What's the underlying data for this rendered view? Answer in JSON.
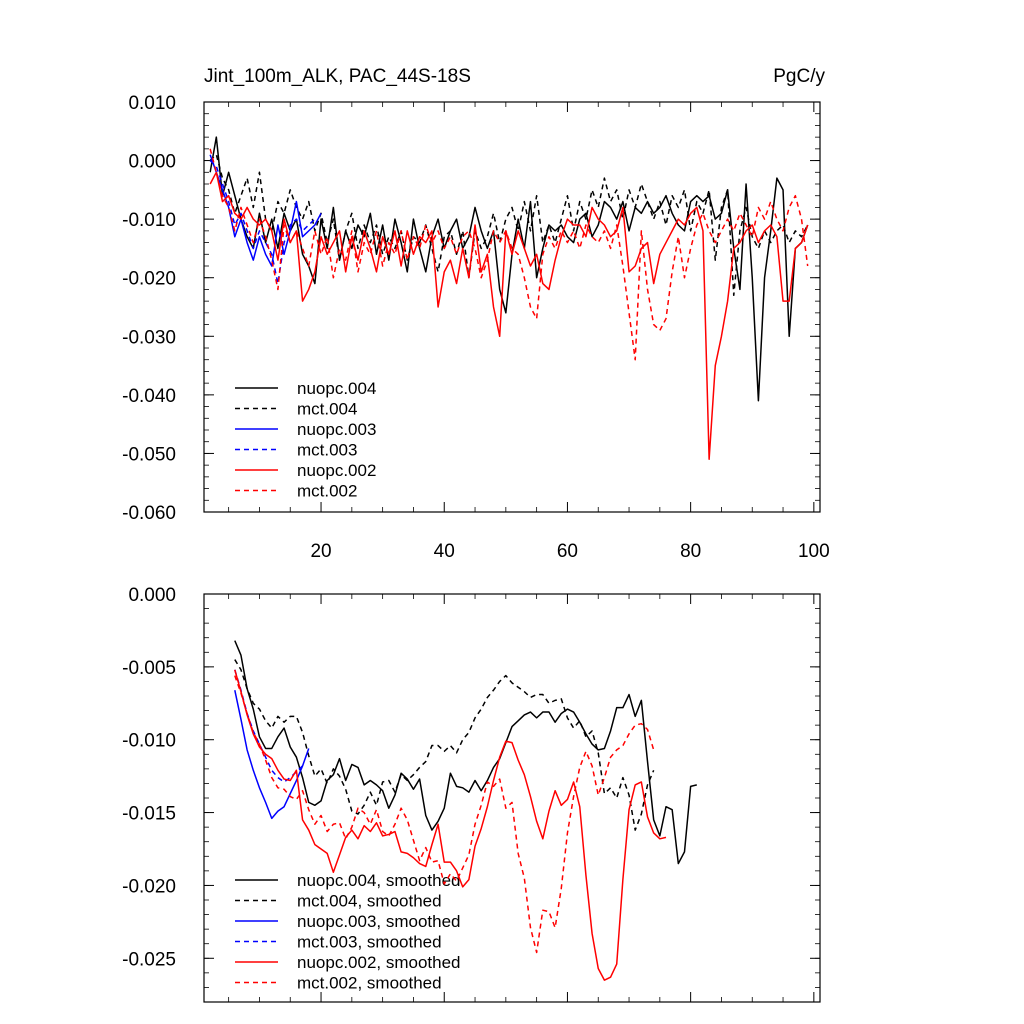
{
  "chart_data": [
    {
      "type": "line",
      "title": "Jint_100m_ALK, PAC_44S-18S",
      "units": "PgC/y",
      "xlabel": "",
      "ylabel": "",
      "xlim": [
        1,
        101
      ],
      "ylim": [
        -0.06,
        0.01
      ],
      "xticks": [
        20,
        40,
        60,
        80,
        100
      ],
      "xtick_labels": [
        "20",
        "40",
        "60",
        "80",
        "100"
      ],
      "yticks": [
        0.01,
        0.0,
        -0.01,
        -0.02,
        -0.03,
        -0.04,
        -0.05,
        -0.06
      ],
      "ytick_labels": [
        "0.010",
        "0.000",
        "-0.010",
        "-0.020",
        "-0.030",
        "-0.040",
        "-0.050",
        "-0.060"
      ],
      "legend_position": "lower-left",
      "series": [
        {
          "name": "nuopc.004",
          "color": "#000000",
          "dash": "solid",
          "x0": 2,
          "values": [
            -0.002,
            0.004,
            -0.006,
            -0.002,
            -0.006,
            -0.01,
            -0.013,
            -0.015,
            -0.009,
            -0.014,
            -0.01,
            -0.015,
            -0.009,
            -0.012,
            -0.01,
            -0.016,
            -0.018,
            -0.021,
            -0.01,
            -0.015,
            -0.008,
            -0.017,
            -0.012,
            -0.015,
            -0.011,
            -0.013,
            -0.009,
            -0.016,
            -0.011,
            -0.017,
            -0.01,
            -0.014,
            -0.019,
            -0.01,
            -0.015,
            -0.019,
            -0.013,
            -0.01,
            -0.015,
            -0.012,
            -0.01,
            -0.015,
            -0.013,
            -0.008,
            -0.012,
            -0.015,
            -0.012,
            -0.022,
            -0.026,
            -0.016,
            -0.01,
            -0.015,
            -0.007,
            -0.02,
            -0.015,
            -0.011,
            -0.012,
            -0.011,
            -0.013,
            -0.014,
            -0.01,
            -0.009,
            -0.013,
            -0.011,
            -0.007,
            -0.008,
            -0.01,
            -0.007,
            -0.012,
            -0.008,
            -0.009,
            -0.007,
            -0.009,
            -0.008,
            -0.006,
            -0.009,
            -0.011,
            -0.012,
            -0.007,
            -0.006,
            -0.007,
            -0.006,
            -0.01,
            -0.009,
            -0.005,
            -0.015,
            -0.022,
            -0.004,
            -0.02,
            -0.041,
            -0.02,
            -0.012,
            -0.003,
            -0.005,
            -0.03,
            -0.015,
            -0.014,
            -0.011
          ]
        },
        {
          "name": "mct.004",
          "color": "#000000",
          "dash": "dashed",
          "x0": 2,
          "values": [
            0.0,
            0.001,
            -0.003,
            -0.005,
            -0.009,
            -0.006,
            -0.003,
            -0.008,
            -0.002,
            -0.01,
            -0.012,
            -0.007,
            -0.009,
            -0.005,
            -0.008,
            -0.01,
            -0.007,
            -0.012,
            -0.009,
            -0.014,
            -0.01,
            -0.017,
            -0.012,
            -0.009,
            -0.015,
            -0.011,
            -0.014,
            -0.011,
            -0.016,
            -0.013,
            -0.015,
            -0.012,
            -0.017,
            -0.013,
            -0.014,
            -0.011,
            -0.015,
            -0.019,
            -0.013,
            -0.012,
            -0.016,
            -0.012,
            -0.02,
            -0.012,
            -0.015,
            -0.013,
            -0.009,
            -0.014,
            -0.01,
            -0.008,
            -0.012,
            -0.007,
            -0.012,
            -0.006,
            -0.014,
            -0.011,
            -0.014,
            -0.01,
            -0.006,
            -0.012,
            -0.007,
            -0.01,
            -0.005,
            -0.008,
            -0.003,
            -0.007,
            -0.005,
            -0.01,
            -0.005,
            -0.008,
            -0.004,
            -0.007,
            -0.01,
            -0.007,
            -0.011,
            -0.006,
            -0.008,
            -0.005,
            -0.012,
            -0.007,
            -0.009,
            -0.005,
            -0.017,
            -0.008,
            -0.005,
            -0.023,
            -0.012,
            -0.008,
            -0.013,
            -0.015,
            -0.012,
            -0.014,
            -0.012,
            -0.011,
            -0.014,
            -0.012,
            -0.013,
            -0.011
          ]
        },
        {
          "name": "nuopc.003",
          "color": "#0000ff",
          "dash": "solid",
          "x0": 2,
          "values": [
            0.001,
            -0.002,
            -0.005,
            -0.008,
            -0.013,
            -0.01,
            -0.014,
            -0.017,
            -0.013,
            -0.016,
            -0.018,
            -0.011,
            -0.016,
            -0.012,
            -0.007,
            -0.013,
            -0.012,
            -0.011,
            -0.009
          ]
        },
        {
          "name": "mct.003",
          "color": "#0000ff",
          "dash": "dashed",
          "x0": 2,
          "values": [
            0.0,
            -0.001,
            -0.004,
            -0.007,
            -0.011,
            -0.009,
            -0.012,
            -0.015,
            -0.012,
            -0.014,
            -0.016,
            -0.021,
            -0.014,
            -0.011,
            -0.01,
            -0.012,
            -0.011,
            -0.01
          ]
        },
        {
          "name": "nuopc.002",
          "color": "#ff0000",
          "dash": "solid",
          "x0": 2,
          "values": [
            -0.004,
            -0.002,
            -0.007,
            -0.006,
            -0.009,
            -0.01,
            -0.008,
            -0.01,
            -0.011,
            -0.01,
            -0.012,
            -0.017,
            -0.01,
            -0.014,
            -0.012,
            -0.024,
            -0.022,
            -0.019,
            -0.013,
            -0.016,
            -0.014,
            -0.012,
            -0.019,
            -0.013,
            -0.017,
            -0.012,
            -0.015,
            -0.019,
            -0.013,
            -0.016,
            -0.012,
            -0.018,
            -0.012,
            -0.016,
            -0.013,
            -0.014,
            -0.012,
            -0.025,
            -0.019,
            -0.017,
            -0.021,
            -0.015,
            -0.02,
            -0.011,
            -0.019,
            -0.016,
            -0.025,
            -0.03,
            -0.012,
            -0.016,
            -0.012,
            -0.015,
            -0.018,
            -0.016,
            -0.021,
            -0.022,
            -0.017,
            -0.013,
            -0.01,
            -0.011,
            -0.011,
            -0.013,
            -0.008,
            -0.01,
            -0.011,
            -0.013,
            -0.012,
            -0.008,
            -0.019,
            -0.018,
            -0.015,
            -0.014,
            -0.021,
            -0.016,
            -0.014,
            -0.012,
            -0.01,
            -0.011,
            -0.009,
            -0.008,
            -0.012,
            -0.051,
            -0.035,
            -0.03,
            -0.024,
            -0.015,
            -0.014,
            -0.012,
            -0.011,
            -0.014,
            -0.012,
            -0.011,
            -0.013,
            -0.024,
            -0.024,
            -0.015,
            -0.014,
            -0.011
          ]
        },
        {
          "name": "mct.002",
          "color": "#ff0000",
          "dash": "dashed",
          "x0": 2,
          "values": [
            0.002,
            -0.002,
            -0.006,
            -0.008,
            -0.012,
            -0.008,
            -0.011,
            -0.014,
            -0.01,
            -0.013,
            -0.017,
            -0.022,
            -0.011,
            -0.014,
            -0.012,
            -0.015,
            -0.018,
            -0.012,
            -0.016,
            -0.013,
            -0.02,
            -0.015,
            -0.017,
            -0.012,
            -0.019,
            -0.014,
            -0.016,
            -0.012,
            -0.018,
            -0.014,
            -0.016,
            -0.012,
            -0.017,
            -0.013,
            -0.015,
            -0.011,
            -0.014,
            -0.012,
            -0.015,
            -0.013,
            -0.016,
            -0.013,
            -0.012,
            -0.015,
            -0.02,
            -0.017,
            -0.012,
            -0.014,
            -0.012,
            -0.015,
            -0.016,
            -0.02,
            -0.025,
            -0.027,
            -0.016,
            -0.013,
            -0.015,
            -0.012,
            -0.014,
            -0.012,
            -0.015,
            -0.011,
            -0.013,
            -0.014,
            -0.012,
            -0.015,
            -0.011,
            -0.018,
            -0.026,
            -0.034,
            -0.012,
            -0.022,
            -0.028,
            -0.029,
            -0.027,
            -0.019,
            -0.013,
            -0.02,
            -0.015,
            -0.011,
            -0.009,
            -0.012,
            -0.014,
            -0.012,
            -0.01,
            -0.012,
            -0.009,
            -0.011,
            -0.013,
            -0.008,
            -0.01,
            -0.007,
            -0.01,
            -0.012,
            -0.008,
            -0.006,
            -0.01,
            -0.018
          ]
        }
      ]
    },
    {
      "type": "line",
      "title": "",
      "xlabel": "",
      "ylabel": "",
      "xlim": [
        1,
        101
      ],
      "ylim": [
        -0.028,
        0.0
      ],
      "xticks": [
        20,
        40,
        60,
        80,
        100
      ],
      "xtick_labels": [],
      "yticks": [
        0.0,
        -0.005,
        -0.01,
        -0.015,
        -0.02,
        -0.025
      ],
      "ytick_labels": [
        "0.000",
        "-0.005",
        "-0.010",
        "-0.015",
        "-0.020",
        "-0.025"
      ],
      "legend_position": "lower-left",
      "series": [
        {
          "name": "nuopc.004, smoothed",
          "color": "#000000",
          "dash": "solid",
          "x0": 6,
          "values": [
            -0.0032,
            -0.0042,
            -0.0065,
            -0.0079,
            -0.0098,
            -0.0106,
            -0.0106,
            -0.0098,
            -0.0092,
            -0.0105,
            -0.0112,
            -0.0126,
            -0.0143,
            -0.0145,
            -0.0142,
            -0.0128,
            -0.0124,
            -0.0113,
            -0.0128,
            -0.0117,
            -0.0119,
            -0.0131,
            -0.0128,
            -0.0131,
            -0.0135,
            -0.0147,
            -0.0138,
            -0.0123,
            -0.0127,
            -0.0134,
            -0.0127,
            -0.0152,
            -0.0162,
            -0.0156,
            -0.0147,
            -0.0123,
            -0.0132,
            -0.0133,
            -0.0136,
            -0.0128,
            -0.0135,
            -0.0128,
            -0.0119,
            -0.0113,
            -0.0102,
            -0.0091,
            -0.0087,
            -0.0083,
            -0.0081,
            -0.0085,
            -0.0081,
            -0.0081,
            -0.0088,
            -0.0082,
            -0.0079,
            -0.0081,
            -0.0088,
            -0.0096,
            -0.0103,
            -0.0107,
            -0.0106,
            -0.0094,
            -0.0078,
            -0.0078,
            -0.0069,
            -0.0084,
            -0.0073,
            -0.0115,
            -0.0155,
            -0.0166,
            -0.0146,
            -0.0148,
            -0.0185,
            -0.0177,
            -0.0132,
            -0.0131
          ]
        },
        {
          "name": "mct.004, smoothed",
          "color": "#000000",
          "dash": "dashed",
          "x0": 6,
          "values": [
            -0.0045,
            -0.0052,
            -0.0065,
            -0.0075,
            -0.0079,
            -0.0087,
            -0.0092,
            -0.0084,
            -0.0088,
            -0.0084,
            -0.0084,
            -0.0095,
            -0.0111,
            -0.0125,
            -0.012,
            -0.013,
            -0.012,
            -0.0125,
            -0.0134,
            -0.0149,
            -0.0151,
            -0.0145,
            -0.0136,
            -0.0145,
            -0.0129,
            -0.0128,
            -0.0136,
            -0.0124,
            -0.0128,
            -0.0124,
            -0.0119,
            -0.0115,
            -0.0104,
            -0.0104,
            -0.0108,
            -0.0104,
            -0.0109,
            -0.01,
            -0.0095,
            -0.0085,
            -0.0079,
            -0.0071,
            -0.0066,
            -0.006,
            -0.0056,
            -0.0061,
            -0.0064,
            -0.0067,
            -0.0071,
            -0.0069,
            -0.0069,
            -0.0075,
            -0.0073,
            -0.0072,
            -0.0085,
            -0.0092,
            -0.0087,
            -0.0098,
            -0.0094,
            -0.0109,
            -0.0137,
            -0.0133,
            -0.014,
            -0.0126,
            -0.0138,
            -0.0162,
            -0.0151,
            -0.0131,
            -0.0121
          ]
        },
        {
          "name": "nuopc.003, smoothed",
          "color": "#0000ff",
          "dash": "solid",
          "x0": 6,
          "values": [
            -0.0066,
            -0.0086,
            -0.0107,
            -0.0121,
            -0.0133,
            -0.0143,
            -0.0154,
            -0.0149,
            -0.0146,
            -0.0137,
            -0.0128,
            -0.0118,
            -0.0106
          ]
        },
        {
          "name": "mct.003, smoothed",
          "color": "#0000ff",
          "dash": "dashed",
          "x0": 6,
          "values": [
            -0.0052,
            -0.0066,
            -0.0082,
            -0.0094,
            -0.0103,
            -0.0112,
            -0.0121,
            -0.0126,
            -0.0129,
            -0.0126,
            -0.0122,
            -0.0118
          ]
        },
        {
          "name": "nuopc.002, smoothed",
          "color": "#ff0000",
          "dash": "solid",
          "x0": 6,
          "values": [
            -0.0052,
            -0.0067,
            -0.0083,
            -0.0096,
            -0.0105,
            -0.011,
            -0.0113,
            -0.0121,
            -0.0127,
            -0.0128,
            -0.0121,
            -0.0155,
            -0.0162,
            -0.0172,
            -0.0175,
            -0.0178,
            -0.0191,
            -0.0179,
            -0.0167,
            -0.0162,
            -0.0168,
            -0.0159,
            -0.0163,
            -0.0157,
            -0.0166,
            -0.0165,
            -0.0163,
            -0.0177,
            -0.0178,
            -0.0181,
            -0.0185,
            -0.0187,
            -0.0172,
            -0.0158,
            -0.0184,
            -0.0184,
            -0.019,
            -0.0201,
            -0.0196,
            -0.0173,
            -0.0161,
            -0.0146,
            -0.0128,
            -0.0112,
            -0.0101,
            -0.0102,
            -0.0114,
            -0.0124,
            -0.0139,
            -0.0156,
            -0.0168,
            -0.0149,
            -0.0135,
            -0.0145,
            -0.0141,
            -0.0129,
            -0.0146,
            -0.0193,
            -0.0233,
            -0.0257,
            -0.0265,
            -0.0263,
            -0.0254,
            -0.0196,
            -0.0148,
            -0.0131,
            -0.0129,
            -0.0153,
            -0.0164,
            -0.0168,
            -0.0167
          ]
        },
        {
          "name": "mct.002, smoothed",
          "color": "#ff0000",
          "dash": "dashed",
          "x0": 6,
          "values": [
            -0.0056,
            -0.0068,
            -0.0082,
            -0.0095,
            -0.0103,
            -0.0114,
            -0.0126,
            -0.0133,
            -0.0134,
            -0.0139,
            -0.0141,
            -0.0135,
            -0.0148,
            -0.0158,
            -0.0152,
            -0.0163,
            -0.0158,
            -0.0157,
            -0.0168,
            -0.016,
            -0.0147,
            -0.015,
            -0.0158,
            -0.0148,
            -0.0163,
            -0.0166,
            -0.0158,
            -0.0147,
            -0.0155,
            -0.0169,
            -0.0183,
            -0.0174,
            -0.0184,
            -0.0183,
            -0.0199,
            -0.0192,
            -0.0197,
            -0.0188,
            -0.0179,
            -0.0158,
            -0.0145,
            -0.0129,
            -0.0132,
            -0.0127,
            -0.0147,
            -0.0143,
            -0.0178,
            -0.0195,
            -0.0229,
            -0.0246,
            -0.0217,
            -0.0218,
            -0.0229,
            -0.0202,
            -0.0164,
            -0.0139,
            -0.0119,
            -0.0108,
            -0.0118,
            -0.0138,
            -0.0126,
            -0.0112,
            -0.0107,
            -0.0104,
            -0.0096,
            -0.009,
            -0.0089,
            -0.0093,
            -0.0107
          ]
        }
      ]
    }
  ]
}
